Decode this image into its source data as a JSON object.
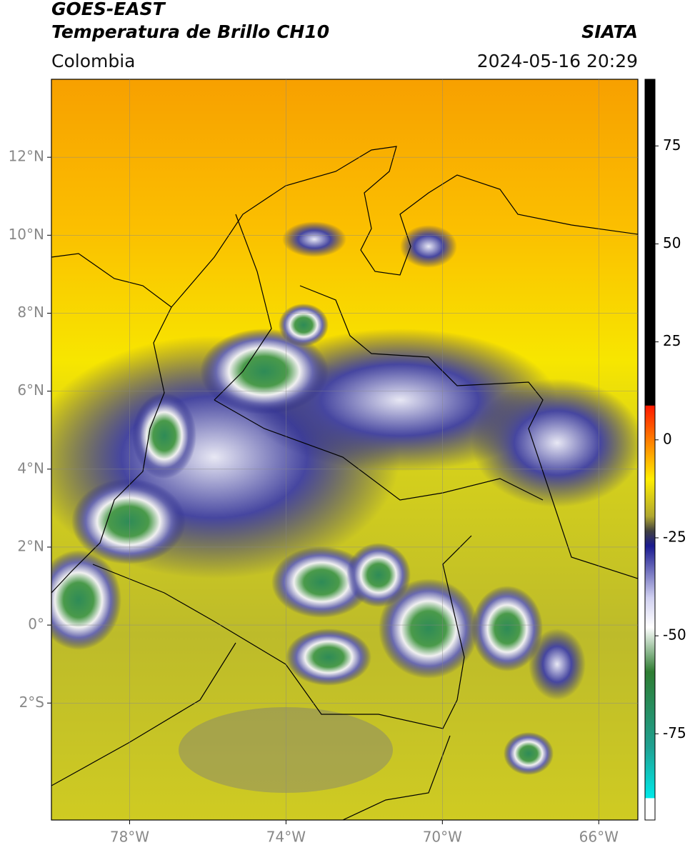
{
  "header": {
    "title": "GOES-EAST",
    "subtitle": "Temperatura de Brillo CH10",
    "region": "Colombia",
    "source": "SIATA",
    "timestamp": "2024-05-16 20:29"
  },
  "map": {
    "xlim": [
      -80,
      -65
    ],
    "ylim": [
      -5,
      14
    ],
    "xticks": [
      {
        "value": -78,
        "label": "78°W"
      },
      {
        "value": -74,
        "label": "74°W"
      },
      {
        "value": -70,
        "label": "70°W"
      },
      {
        "value": -66,
        "label": "66°W"
      }
    ],
    "yticks": [
      {
        "value": 12,
        "label": "12°N"
      },
      {
        "value": 10,
        "label": "10°N"
      },
      {
        "value": 8,
        "label": "8°N"
      },
      {
        "value": 6,
        "label": "6°N"
      },
      {
        "value": 4,
        "label": "4°N"
      },
      {
        "value": 2,
        "label": "2°N"
      },
      {
        "value": 0,
        "label": "0°"
      },
      {
        "value": -2,
        "label": "2°S"
      }
    ],
    "grid": true,
    "colorbar": {
      "lim": [
        -97,
        92
      ],
      "ticks": [
        75,
        50,
        25,
        0,
        -25,
        -50,
        -75
      ]
    }
  }
}
